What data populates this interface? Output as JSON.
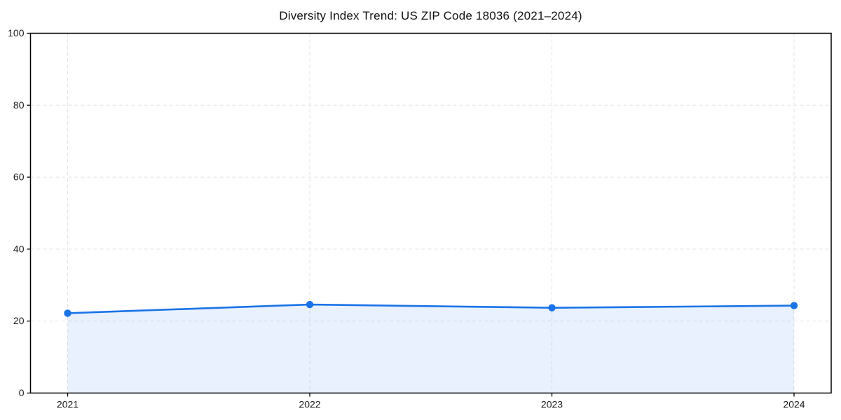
{
  "chart_data": {
    "type": "area",
    "title": "Diversity Index Trend: US ZIP Code 18036 (2021–2024)",
    "categories": [
      "2021",
      "2022",
      "2023",
      "2024"
    ],
    "series": [
      {
        "name": "Diversity Index",
        "values": [
          22.2,
          24.6,
          23.7,
          24.3
        ]
      }
    ],
    "xlabel": "",
    "ylabel": "",
    "ylim": [
      0,
      100
    ],
    "yticks": [
      0,
      20,
      40,
      60,
      80,
      100
    ],
    "grid": "dashed-both-axes",
    "legend_position": "none",
    "marker": "circle",
    "colors": {
      "line": "#1a73e8",
      "marker": "#1a73e8",
      "area_fill": "rgba(26,115,232,0.10)",
      "grid": "#e3e3e3",
      "axis": "#000000",
      "tick_label": "#1a1a1a",
      "title": "#111111",
      "background": "#ffffff"
    }
  }
}
